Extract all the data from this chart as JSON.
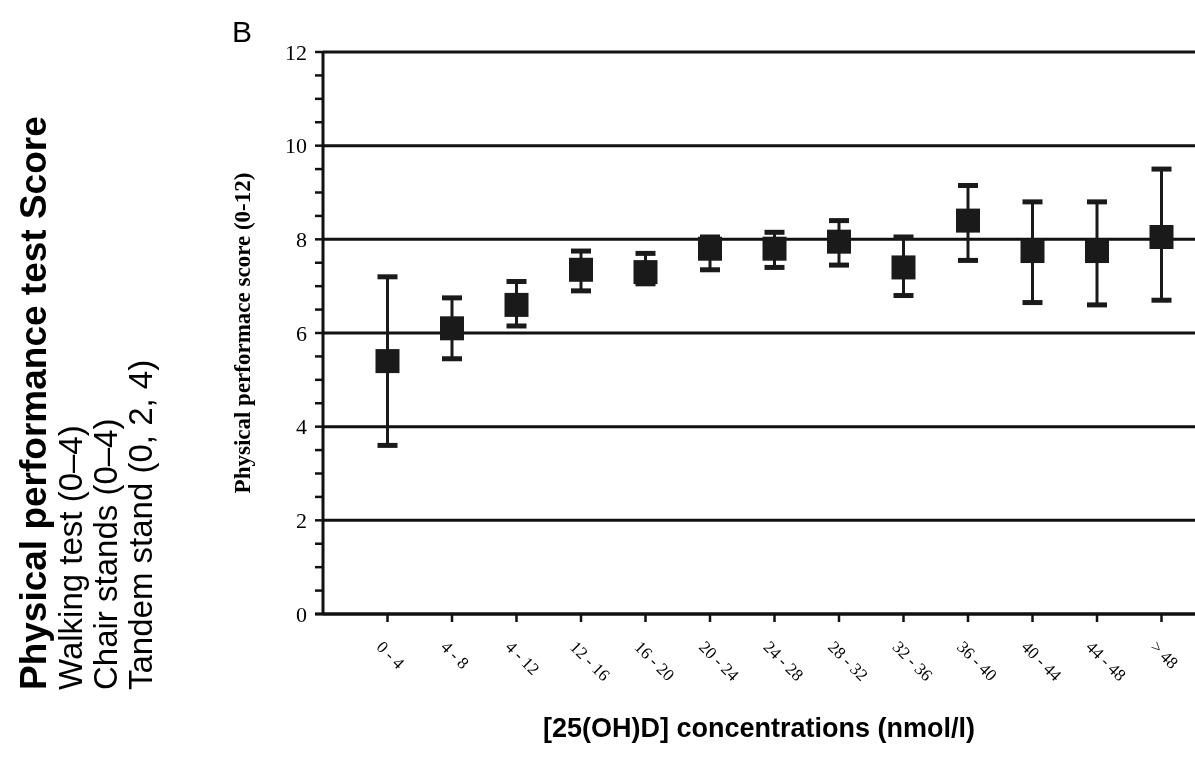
{
  "chart_data": {
    "type": "scatter",
    "title": "Physical performance test Score",
    "subtitle": "Walking test (0–4)\nChair stands (0–4)\nTandem stand (0, 2, 4)",
    "annotations": [
      "B"
    ],
    "xlabel": "[25(OH)D] concentrations (nmol/l)",
    "ylabel": "Physical performace score (0-12)",
    "categories": [
      "0 - 4",
      "4 - 8",
      "4 - 12",
      "12 - 16",
      "16 - 20",
      "20 - 24",
      "24 - 28",
      "28 - 32",
      "32 - 36",
      "36 - 40",
      "40 - 44",
      "44 - 48",
      "> 48"
    ],
    "series": [
      {
        "color": "#1a1a1a",
        "values": [
          5.4,
          6.1,
          6.6,
          7.35,
          7.3,
          7.8,
          7.8,
          7.95,
          7.4,
          8.4,
          7.75,
          7.75,
          8.05
        ],
        "errors": [
          [
            3.6,
            7.2
          ],
          [
            5.45,
            6.75
          ],
          [
            6.15,
            7.1
          ],
          [
            6.9,
            7.75
          ],
          [
            7.05,
            7.7
          ],
          [
            7.35,
            8.05
          ],
          [
            7.4,
            8.15
          ],
          [
            7.45,
            8.4
          ],
          [
            6.8,
            8.05
          ],
          [
            7.55,
            9.15
          ],
          [
            6.65,
            8.8
          ],
          [
            6.6,
            8.8
          ],
          [
            6.7,
            9.5
          ]
        ]
      }
    ],
    "ylim": [
      0,
      12
    ],
    "yticks": [
      0,
      {
        "value": 0.5,
        "label": null
      },
      {
        "value": 1,
        "label": null
      },
      {
        "value": 1.5,
        "label": null
      },
      2,
      {
        "value": 2.5,
        "label": null
      },
      {
        "value": 3,
        "label": null
      },
      {
        "value": 3.5,
        "label": null
      },
      4,
      {
        "value": 4.5,
        "label": null
      },
      {
        "value": 5,
        "label": null
      },
      {
        "value": 5.5,
        "label": null
      },
      6,
      {
        "value": 6.5,
        "label": null
      },
      {
        "value": 7,
        "label": null
      },
      {
        "value": 7.5,
        "label": null
      },
      8,
      {
        "value": 8.5,
        "label": null
      },
      {
        "value": 9,
        "label": null
      },
      {
        "value": 9.5,
        "label": null
      },
      10,
      {
        "value": 10.5,
        "label": null
      },
      {
        "value": 11,
        "label": null
      },
      {
        "value": 11.5,
        "label": null
      },
      12
    ],
    "grid": "y",
    "marker": "square"
  }
}
